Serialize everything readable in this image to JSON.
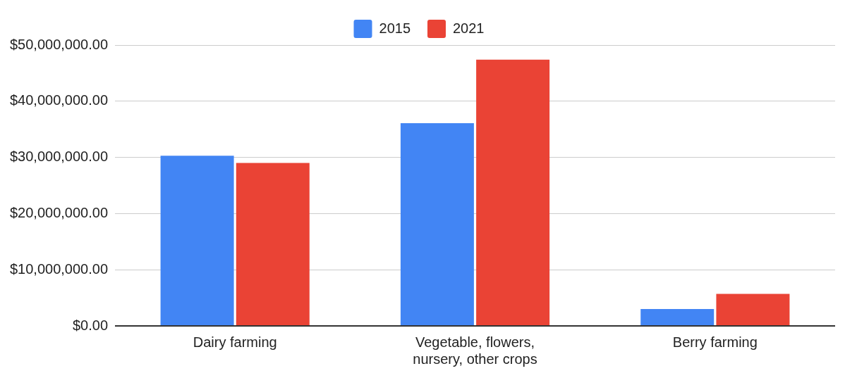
{
  "chart_data": {
    "type": "bar",
    "categories": [
      "Dairy farming",
      "Vegetable, flowers, nursery, other crops",
      "Berry farming"
    ],
    "series": [
      {
        "name": "2015",
        "color": "#4285f4",
        "values": [
          30300000,
          36100000,
          3000000
        ]
      },
      {
        "name": "2021",
        "color": "#ea4335",
        "values": [
          29000000,
          47400000,
          5700000
        ]
      }
    ],
    "ylim": [
      0,
      50000000
    ],
    "yticks": [
      {
        "value": 0,
        "label": "$0.00"
      },
      {
        "value": 10000000,
        "label": "$10,000,000.00"
      },
      {
        "value": 20000000,
        "label": "$20,000,000.00"
      },
      {
        "value": 30000000,
        "label": "$30,000,000.00"
      },
      {
        "value": 40000000,
        "label": "$40,000,000.00"
      },
      {
        "value": 50000000,
        "label": "$50,000,000.00"
      }
    ],
    "grid": "y",
    "legend": "top"
  }
}
